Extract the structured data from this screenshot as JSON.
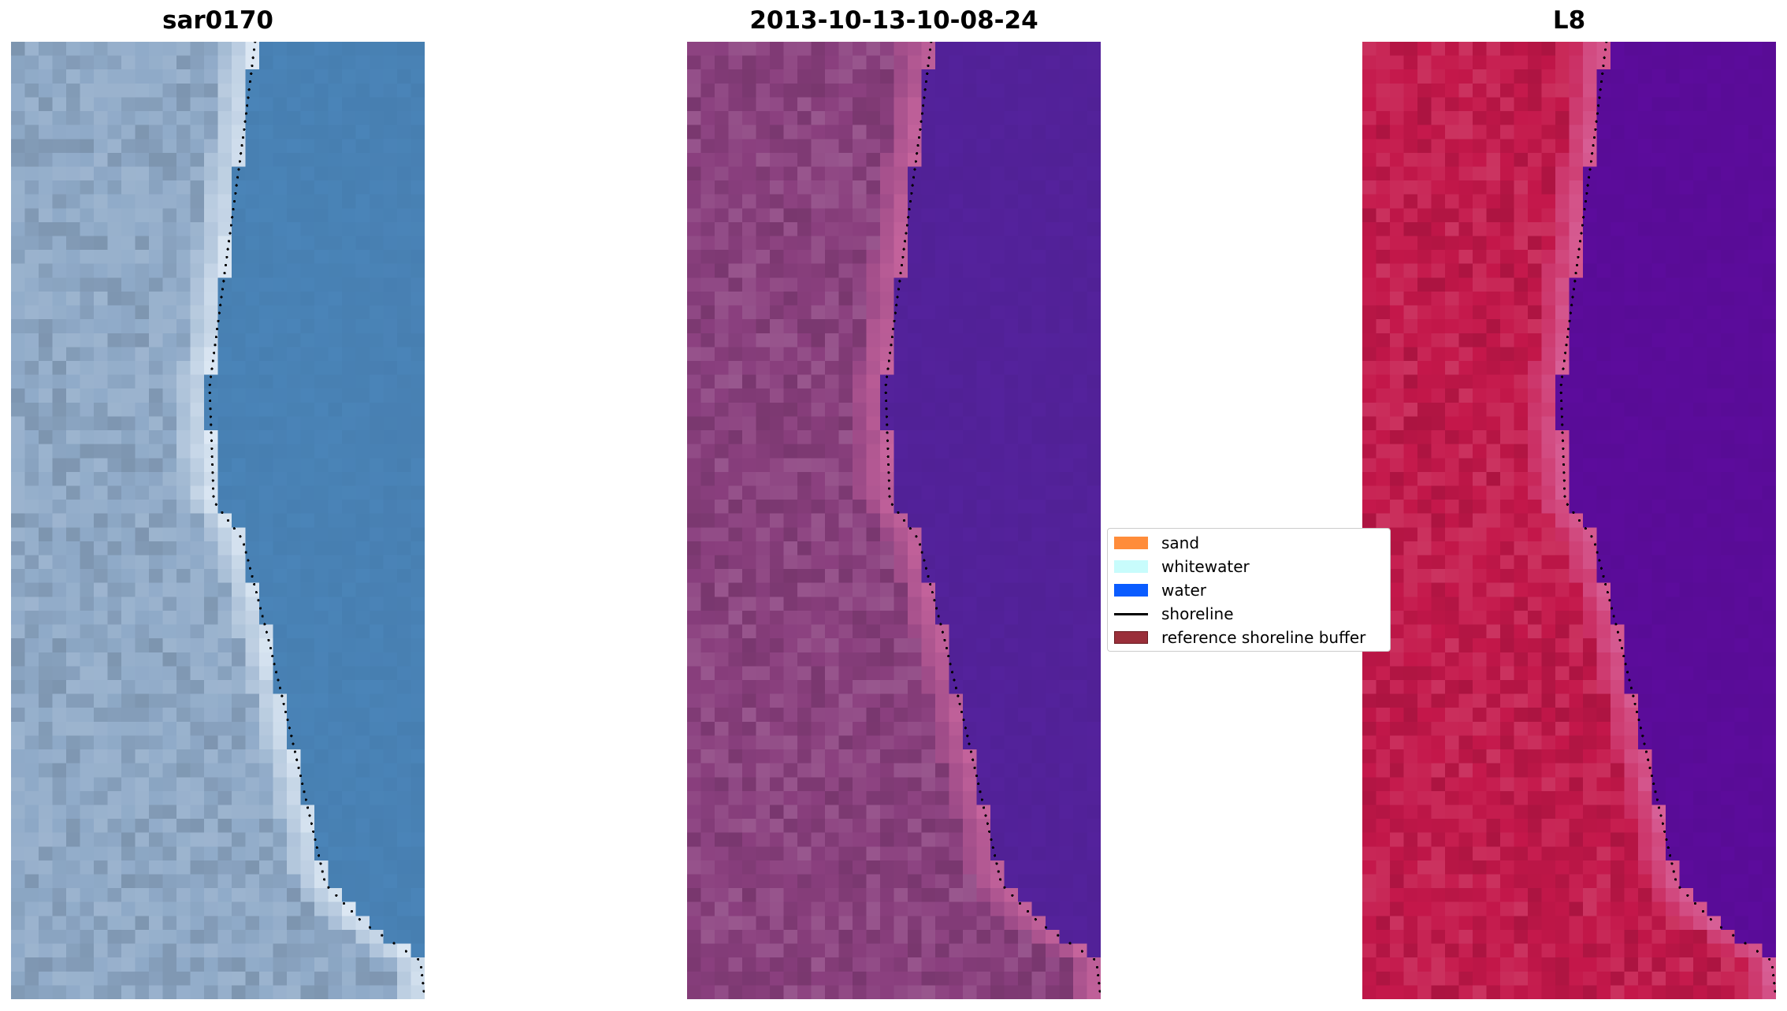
{
  "panels": [
    {
      "title": "sar0170",
      "land_color": "#8faac8",
      "water_color": "#4a84b8",
      "foam_color": "#dfeaf5"
    },
    {
      "title": "2013-10-13-10-08-24",
      "land_color": "#8a3f7e",
      "water_color": "#54229c",
      "foam_color": "#c9669e"
    },
    {
      "title": "L8",
      "land_color": "#c4174a",
      "water_color": "#5c0c9c",
      "foam_color": "#d8639a"
    }
  ],
  "legend": {
    "items": [
      {
        "label": "sand",
        "color": "#ff8c3a",
        "kind": "patch"
      },
      {
        "label": "whitewater",
        "color": "#c8fcfc",
        "kind": "patch"
      },
      {
        "label": "water",
        "color": "#0a5cff",
        "kind": "patch"
      },
      {
        "label": "shoreline",
        "color": "#000000",
        "kind": "line"
      },
      {
        "label": "reference shoreline buffer",
        "color": "#9a2f3a",
        "kind": "patch"
      }
    ]
  }
}
